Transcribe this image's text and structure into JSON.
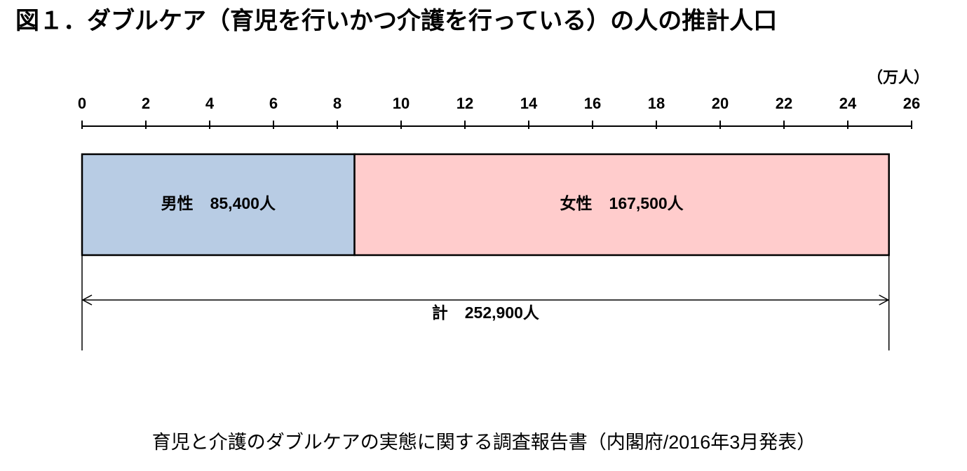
{
  "chart_data": {
    "type": "stacked-bar-horizontal",
    "title": "図１．ダブルケア（育児を行いかつ介護を行っている）の人の推計人口",
    "x_unit": "（万人）",
    "xlim": [
      0,
      26
    ],
    "xticks": [
      0,
      2,
      4,
      6,
      8,
      10,
      12,
      14,
      16,
      18,
      20,
      22,
      24,
      26
    ],
    "series": [
      {
        "name": "男性",
        "color": "#b8cce4",
        "values": [
          8.54
        ],
        "value_labels": [
          "85,400人"
        ]
      },
      {
        "name": "女性",
        "color": "#ffcccc",
        "values": [
          16.75
        ],
        "value_labels": [
          "167,500人"
        ]
      }
    ],
    "total": {
      "name": "計",
      "value": 25.29,
      "value_label": "252,900人"
    },
    "source": "育児と介護のダブルケアの実態に関する調査報告書（内閣府/2016年3月発表）"
  }
}
